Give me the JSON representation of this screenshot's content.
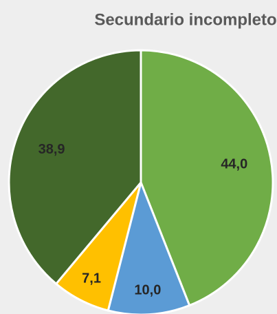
{
  "chart_data": {
    "type": "pie",
    "title": "Secundario incompleto",
    "categories": [
      null,
      null,
      null,
      null
    ],
    "values": [
      44.0,
      10.0,
      7.1,
      38.9
    ],
    "value_labels": [
      "44,0",
      "10,0",
      "7,1",
      "38,9"
    ],
    "colors": [
      "#70ad47",
      "#5b9bd5",
      "#ffc000",
      "#43682b"
    ]
  }
}
